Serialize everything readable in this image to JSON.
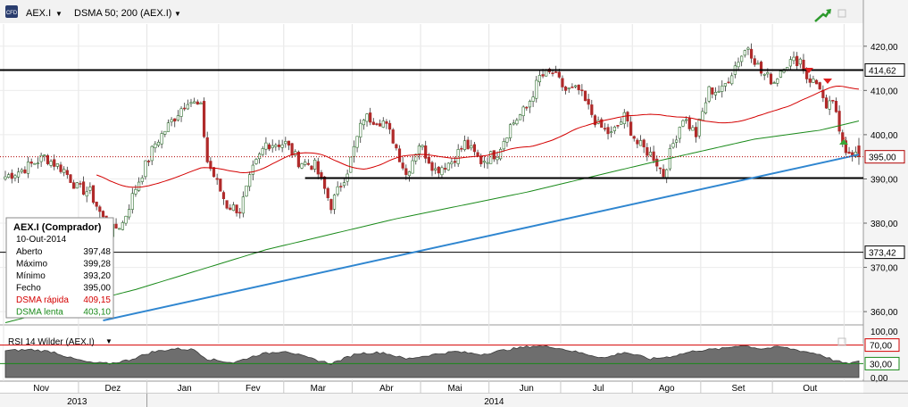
{
  "header": {
    "symbol": "AEX.I",
    "indicator": "DSMA 50; 200 (AEX.I)",
    "cfd_icon": "CFD"
  },
  "chart_data": {
    "type": "candlestick",
    "y_axis": {
      "ticks": [
        360,
        370,
        380,
        390,
        400,
        410,
        420
      ],
      "tick_labels": [
        "360,00",
        "370,00",
        "380,00",
        "390,00",
        "400,00",
        "410,00",
        "420,00"
      ],
      "ylim": [
        357,
        425
      ]
    },
    "price_labels": [
      {
        "value": 414.62,
        "label": "414,62",
        "color": "#000000"
      },
      {
        "value": 395.0,
        "label": "395,00",
        "color": "#b00000"
      },
      {
        "value": 373.42,
        "label": "373,42",
        "color": "#000000"
      }
    ],
    "x_axis": {
      "months": [
        "Nov",
        "Dez",
        "Jan",
        "Fev",
        "Mar",
        "Abr",
        "Mai",
        "Jun",
        "Jul",
        "Ago",
        "Set",
        "Out"
      ],
      "years": [
        "2013",
        "2014"
      ]
    },
    "horizontal_lines": [
      414.62,
      373.42
    ],
    "support_line": {
      "from_index": 92,
      "to_index": 262,
      "value": 390.2
    },
    "trend_line": {
      "from": [
        30,
        358
      ],
      "to": [
        262,
        395.5
      ]
    },
    "series": [
      {
        "name": "DSMA rápida",
        "color": "#d40000"
      },
      {
        "name": "DSMA lenta",
        "color": "#1a8a1a"
      }
    ],
    "anchors": [
      [
        0,
        390.5
      ],
      [
        5,
        392
      ],
      [
        12,
        395
      ],
      [
        18,
        392
      ],
      [
        22,
        388
      ],
      [
        26,
        387
      ],
      [
        32,
        378
      ],
      [
        36,
        380
      ],
      [
        40,
        388
      ],
      [
        46,
        398
      ],
      [
        52,
        404
      ],
      [
        56,
        408
      ],
      [
        60,
        406
      ],
      [
        62,
        394
      ],
      [
        68,
        384
      ],
      [
        72,
        383
      ],
      [
        76,
        392
      ],
      [
        80,
        398
      ],
      [
        86,
        398
      ],
      [
        90,
        394
      ],
      [
        95,
        393
      ],
      [
        100,
        384
      ],
      [
        105,
        392
      ],
      [
        110,
        404
      ],
      [
        116,
        403
      ],
      [
        119,
        399
      ],
      [
        123,
        391
      ],
      [
        127,
        398
      ],
      [
        132,
        392
      ],
      [
        137,
        394
      ],
      [
        141,
        398
      ],
      [
        146,
        394
      ],
      [
        151,
        396
      ],
      [
        155,
        402
      ],
      [
        160,
        406
      ],
      [
        164,
        413
      ],
      [
        168,
        414
      ],
      [
        172,
        410
      ],
      [
        176,
        410
      ],
      [
        182,
        402
      ],
      [
        186,
        400
      ],
      [
        190,
        404
      ],
      [
        194,
        398
      ],
      [
        199,
        395
      ],
      [
        202,
        391
      ],
      [
        205,
        398
      ],
      [
        208,
        404
      ],
      [
        212,
        400
      ],
      [
        216,
        410
      ],
      [
        220,
        410
      ],
      [
        225,
        417
      ],
      [
        228,
        420
      ],
      [
        232,
        414
      ],
      [
        236,
        412
      ],
      [
        239,
        416
      ],
      [
        244,
        417
      ],
      [
        246,
        413
      ],
      [
        250,
        411
      ],
      [
        252,
        405
      ],
      [
        254,
        408
      ],
      [
        256,
        400
      ],
      [
        258,
        397
      ],
      [
        262,
        395
      ]
    ],
    "ohlc_last": {
      "open": 397.48,
      "high": 399.28,
      "low": 393.2,
      "close": 395.0
    }
  },
  "infobox": {
    "title": "AEX.I (Comprador)",
    "date": "10-Out-2014",
    "rows": [
      {
        "label": "Aberto",
        "value": "397,48",
        "color": "#000000"
      },
      {
        "label": "Máximo",
        "value": "399,28",
        "color": "#000000"
      },
      {
        "label": "Mínimo",
        "value": "393,20",
        "color": "#000000"
      },
      {
        "label": "Fecho",
        "value": "395,00",
        "color": "#000000"
      },
      {
        "label": "DSMA rápida",
        "value": "409,15",
        "color": "#d40000"
      },
      {
        "label": "DSMA lenta",
        "value": "403,10",
        "color": "#1a8a1a"
      }
    ]
  },
  "rsi": {
    "label": "RSI 14 Wilder (AEX.I)",
    "ticks": [
      "100,00",
      "0,00"
    ],
    "levels": [
      {
        "value": 70,
        "label": "70,00",
        "color": "#d40000"
      },
      {
        "value": 30,
        "label": "30,00",
        "color": "#1a8a1a"
      }
    ],
    "anchors": [
      [
        0,
        58
      ],
      [
        8,
        60
      ],
      [
        15,
        55
      ],
      [
        20,
        42
      ],
      [
        26,
        32
      ],
      [
        32,
        30
      ],
      [
        38,
        38
      ],
      [
        45,
        55
      ],
      [
        52,
        62
      ],
      [
        58,
        60
      ],
      [
        62,
        40
      ],
      [
        70,
        32
      ],
      [
        78,
        50
      ],
      [
        86,
        58
      ],
      [
        92,
        44
      ],
      [
        100,
        30
      ],
      [
        108,
        52
      ],
      [
        116,
        54
      ],
      [
        123,
        40
      ],
      [
        130,
        48
      ],
      [
        138,
        56
      ],
      [
        146,
        50
      ],
      [
        154,
        60
      ],
      [
        162,
        68
      ],
      [
        168,
        66
      ],
      [
        176,
        54
      ],
      [
        184,
        42
      ],
      [
        190,
        55
      ],
      [
        198,
        40
      ],
      [
        204,
        45
      ],
      [
        212,
        58
      ],
      [
        220,
        62
      ],
      [
        226,
        70
      ],
      [
        232,
        62
      ],
      [
        238,
        66
      ],
      [
        244,
        58
      ],
      [
        250,
        50
      ],
      [
        254,
        38
      ],
      [
        258,
        30
      ],
      [
        262,
        34
      ]
    ]
  }
}
